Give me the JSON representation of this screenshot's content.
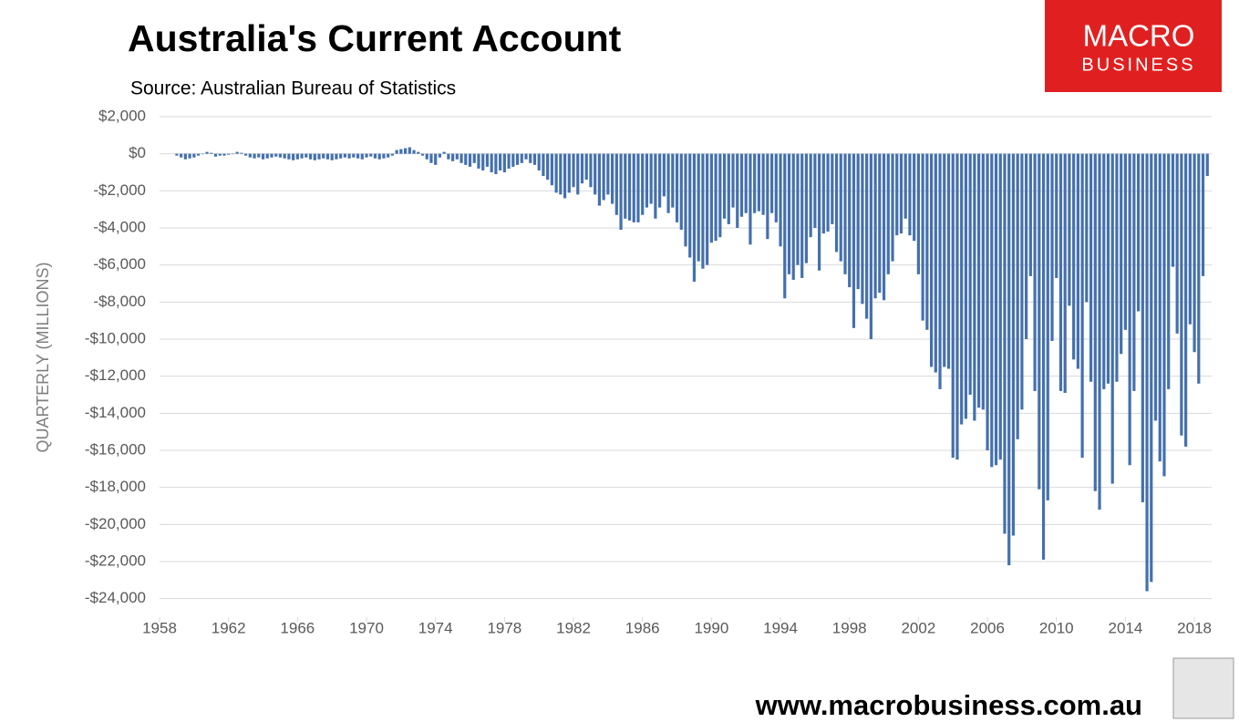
{
  "chart_data": {
    "type": "bar",
    "title": "Australia's Current Account",
    "subtitle": "Source: Australian Bureau of Statistics",
    "y_label": "QUARTERLY (MILLIONS)",
    "color": "#4470ad",
    "grid": true,
    "xlim": [
      1958,
      2019
    ],
    "xticks": [
      1958,
      1962,
      1966,
      1970,
      1974,
      1978,
      1982,
      1986,
      1990,
      1994,
      1998,
      2002,
      2006,
      2010,
      2014,
      2018
    ],
    "ylim": [
      -25000,
      2000
    ],
    "yticks": [
      {
        "value": 2000,
        "label": "$2,000"
      },
      {
        "value": 0,
        "label": "$0"
      },
      {
        "value": -2000,
        "label": "-$2,000"
      },
      {
        "value": -4000,
        "label": "-$4,000"
      },
      {
        "value": -6000,
        "label": "-$6,000"
      },
      {
        "value": -8000,
        "label": "-$8,000"
      },
      {
        "value": -10000,
        "label": "-$10,000"
      },
      {
        "value": -12000,
        "label": "-$12,000"
      },
      {
        "value": -14000,
        "label": "-$14,000"
      },
      {
        "value": -16000,
        "label": "-$16,000"
      },
      {
        "value": -18000,
        "label": "-$18,000"
      },
      {
        "value": -20000,
        "label": "-$20,000"
      },
      {
        "value": -22000,
        "label": "-$22,000"
      },
      {
        "value": -24000,
        "label": "-$24,000"
      }
    ],
    "x": [
      1959,
      1959.25,
      1959.5,
      1959.75,
      1960,
      1960.25,
      1960.5,
      1960.75,
      1961,
      1961.25,
      1961.5,
      1961.75,
      1962,
      1962.25,
      1962.5,
      1962.75,
      1963,
      1963.25,
      1963.5,
      1963.75,
      1964,
      1964.25,
      1964.5,
      1964.75,
      1965,
      1965.25,
      1965.5,
      1965.75,
      1966,
      1966.25,
      1966.5,
      1966.75,
      1967,
      1967.25,
      1967.5,
      1967.75,
      1968,
      1968.25,
      1968.5,
      1968.75,
      1969,
      1969.25,
      1969.5,
      1969.75,
      1970,
      1970.25,
      1970.5,
      1970.75,
      1971,
      1971.25,
      1971.5,
      1971.75,
      1972,
      1972.25,
      1972.5,
      1972.75,
      1973,
      1973.25,
      1973.5,
      1973.75,
      1974,
      1974.25,
      1974.5,
      1974.75,
      1975,
      1975.25,
      1975.5,
      1975.75,
      1976,
      1976.25,
      1976.5,
      1976.75,
      1977,
      1977.25,
      1977.5,
      1977.75,
      1978,
      1978.25,
      1978.5,
      1978.75,
      1979,
      1979.25,
      1979.5,
      1979.75,
      1980,
      1980.25,
      1980.5,
      1980.75,
      1981,
      1981.25,
      1981.5,
      1981.75,
      1982,
      1982.25,
      1982.5,
      1982.75,
      1983,
      1983.25,
      1983.5,
      1983.75,
      1984,
      1984.25,
      1984.5,
      1984.75,
      1985,
      1985.25,
      1985.5,
      1985.75,
      1986,
      1986.25,
      1986.5,
      1986.75,
      1987,
      1987.25,
      1987.5,
      1987.75,
      1988,
      1988.25,
      1988.5,
      1988.75,
      1989,
      1989.25,
      1989.5,
      1989.75,
      1990,
      1990.25,
      1990.5,
      1990.75,
      1991,
      1991.25,
      1991.5,
      1991.75,
      1992,
      1992.25,
      1992.5,
      1992.75,
      1993,
      1993.25,
      1993.5,
      1993.75,
      1994,
      1994.25,
      1994.5,
      1994.75,
      1995,
      1995.25,
      1995.5,
      1995.75,
      1996,
      1996.25,
      1996.5,
      1996.75,
      1997,
      1997.25,
      1997.5,
      1997.75,
      1998,
      1998.25,
      1998.5,
      1998.75,
      1999,
      1999.25,
      1999.5,
      1999.75,
      2000,
      2000.25,
      2000.5,
      2000.75,
      2001,
      2001.25,
      2001.5,
      2001.75,
      2002,
      2002.25,
      2002.5,
      2002.75,
      2003,
      2003.25,
      2003.5,
      2003.75,
      2004,
      2004.25,
      2004.5,
      2004.75,
      2005,
      2005.25,
      2005.5,
      2005.75,
      2006,
      2006.25,
      2006.5,
      2006.75,
      2007,
      2007.25,
      2007.5,
      2007.75,
      2008,
      2008.25,
      2008.5,
      2008.75,
      2009,
      2009.25,
      2009.5,
      2009.75,
      2010,
      2010.25,
      2010.5,
      2010.75,
      2011,
      2011.25,
      2011.5,
      2011.75,
      2012,
      2012.25,
      2012.5,
      2012.75,
      2013,
      2013.25,
      2013.5,
      2013.75,
      2014,
      2014.25,
      2014.5,
      2014.75,
      2015,
      2015.25,
      2015.5,
      2015.75,
      2016,
      2016.25,
      2016.5,
      2016.75,
      2017,
      2017.25,
      2017.5,
      2017.75,
      2018,
      2018.25,
      2018.5,
      2018.75
    ],
    "values": [
      -100,
      -200,
      -300,
      -250,
      -200,
      -100,
      0,
      100,
      50,
      -150,
      -100,
      -100,
      -50,
      0,
      100,
      50,
      -100,
      -200,
      -250,
      -200,
      -300,
      -250,
      -200,
      -150,
      -200,
      -250,
      -300,
      -350,
      -300,
      -250,
      -200,
      -300,
      -350,
      -300,
      -250,
      -300,
      -350,
      -300,
      -250,
      -200,
      -250,
      -200,
      -250,
      -300,
      -200,
      -150,
      -250,
      -300,
      -250,
      -200,
      -100,
      200,
      250,
      300,
      350,
      200,
      100,
      -100,
      -300,
      -500,
      -600,
      -200,
      100,
      -300,
      -400,
      -300,
      -500,
      -600,
      -700,
      -500,
      -800,
      -900,
      -700,
      -1000,
      -1100,
      -900,
      -1000,
      -800,
      -700,
      -600,
      -500,
      -300,
      -500,
      -600,
      -900,
      -1200,
      -1400,
      -1700,
      -2100,
      -2200,
      -2400,
      -2100,
      -1800,
      -2200,
      -1600,
      -1400,
      -1800,
      -2200,
      -2800,
      -2500,
      -2200,
      -2700,
      -3300,
      -4100,
      -3500,
      -3600,
      -3700,
      -3700,
      -3300,
      -2900,
      -2700,
      -3500,
      -2900,
      -2300,
      -3200,
      -2900,
      -3700,
      -4100,
      -5000,
      -5600,
      -6900,
      -5800,
      -6200,
      -6000,
      -4800,
      -4700,
      -4500,
      -3500,
      -3800,
      -2900,
      -4000,
      -3400,
      -3200,
      -4900,
      -3200,
      -3100,
      -3300,
      -4600,
      -3200,
      -3700,
      -5000,
      -7800,
      -6500,
      -6800,
      -6000,
      -6700,
      -5900,
      -4500,
      -4000,
      -6300,
      -4300,
      -4200,
      -3800,
      -5300,
      -5800,
      -6500,
      -7200,
      -9400,
      -7300,
      -8100,
      -8900,
      -10000,
      -7800,
      -7500,
      -7900,
      -6500,
      -5800,
      -4400,
      -4300,
      -3500,
      -4400,
      -4700,
      -6500,
      -9000,
      -9500,
      -11500,
      -11800,
      -12700,
      -11500,
      -11600,
      -16400,
      -16500,
      -14600,
      -14300,
      -13000,
      -14400,
      -13700,
      -13800,
      -16000,
      -16900,
      -16800,
      -16500,
      -20500,
      -22200,
      -20600,
      -15400,
      -13800,
      -10000,
      -6600,
      -12800,
      -18100,
      -21900,
      -18700,
      -10100,
      -6700,
      -12800,
      -12900,
      -8200,
      -11100,
      -11600,
      -16400,
      -8000,
      -12300,
      -18200,
      -19200,
      -12700,
      -12400,
      -17800,
      -12300,
      -10800,
      -9500,
      -16800,
      -12800,
      -8500,
      -18800,
      -23600,
      -23100,
      -14400,
      -16600,
      -17400,
      -12700,
      -6100,
      -9700,
      -15200,
      -15800,
      -9200,
      -10700,
      -12400,
      -6600,
      -1200
    ]
  },
  "logo": {
    "line1": "MACRO",
    "line2": "BUSINESS"
  },
  "website": "www.macrobusiness.com.au"
}
